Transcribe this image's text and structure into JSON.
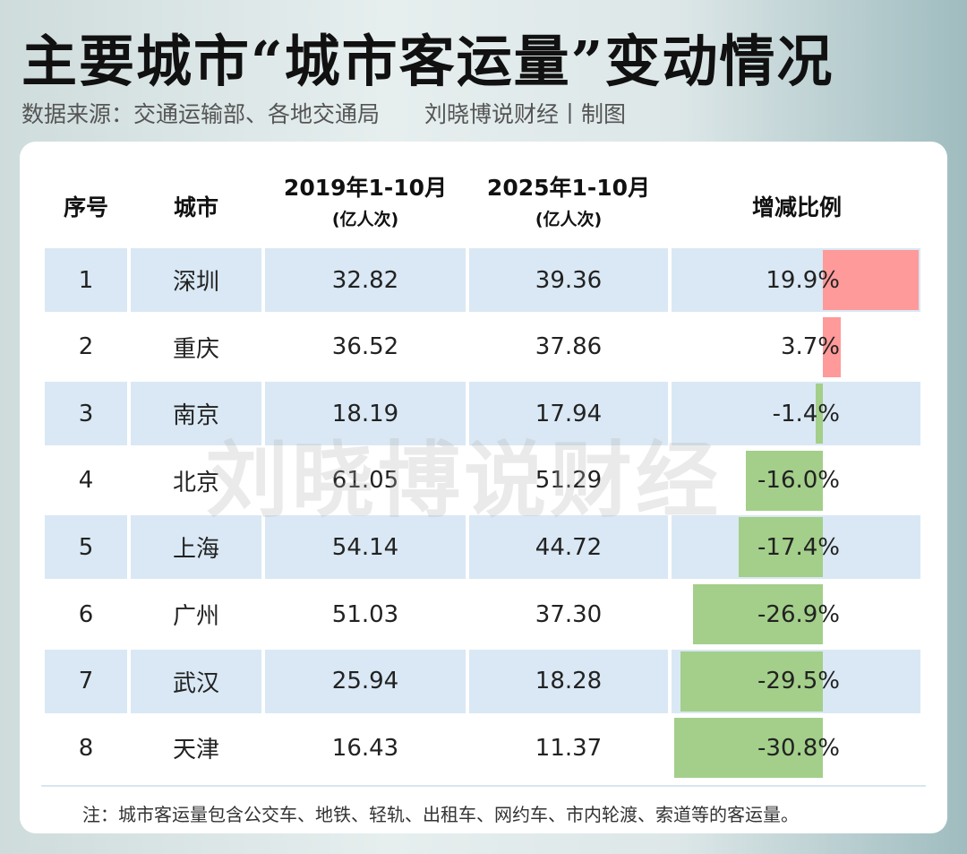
{
  "title": "主要城市“城市客运量”变动情况",
  "source": "数据来源：交通运输部、各地交通局",
  "credit": "刘晓博说财经丨制图",
  "watermark": "刘晓博说财经",
  "note": "注：城市客运量包含公交车、地铁、轻轨、出租车、网约车、市内轮渡、索道等的客运量。",
  "chart_data": {
    "type": "table",
    "headers": [
      "序号",
      "城市",
      "2019年1-10月",
      "2025年1-10月",
      "增减比例"
    ],
    "unit": "(亿人次)",
    "rows": [
      {
        "rank": "1",
        "city": "深圳",
        "v2019": "32.82",
        "v2025": "39.36",
        "change": "19.9%",
        "value": 19.9
      },
      {
        "rank": "2",
        "city": "重庆",
        "v2019": "36.52",
        "v2025": "37.86",
        "change": "3.7%",
        "value": 3.7
      },
      {
        "rank": "3",
        "city": "南京",
        "v2019": "18.19",
        "v2025": "17.94",
        "change": "-1.4%",
        "value": -1.4
      },
      {
        "rank": "4",
        "city": "北京",
        "v2019": "61.05",
        "v2025": "51.29",
        "change": "-16.0%",
        "value": -16.0
      },
      {
        "rank": "5",
        "city": "上海",
        "v2019": "54.14",
        "v2025": "44.72",
        "change": "-17.4%",
        "value": -17.4
      },
      {
        "rank": "6",
        "city": "广州",
        "v2019": "51.03",
        "v2025": "37.30",
        "change": "-26.9%",
        "value": -26.9
      },
      {
        "rank": "7",
        "city": "武汉",
        "v2019": "25.94",
        "v2025": "18.28",
        "change": "-29.5%",
        "value": -29.5
      },
      {
        "rank": "8",
        "city": "天津",
        "v2019": "16.43",
        "v2025": "11.37",
        "change": "-30.8%",
        "value": -30.8
      }
    ],
    "colors": {
      "positive": "#ff9a9a",
      "negative": "#a3cf8a",
      "row_alt": "#d9e8f4"
    }
  }
}
